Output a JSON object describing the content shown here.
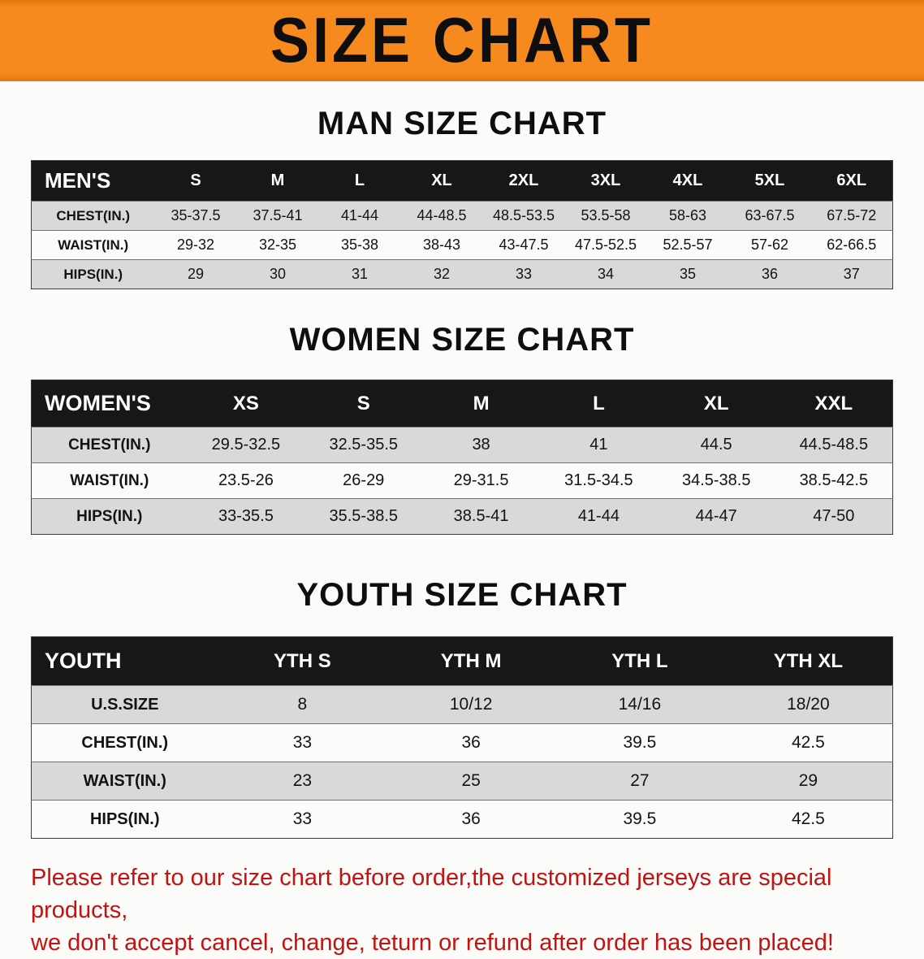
{
  "banner": {
    "title": "SIZE CHART"
  },
  "colors": {
    "banner_bg": "#f68a1e",
    "header_bg": "#171717",
    "stripe": "#d9d9d9",
    "disclaimer": "#c31310"
  },
  "sections": [
    {
      "id": "men",
      "heading": "MAN SIZE CHART",
      "table": {
        "header": [
          "MEN'S",
          "S",
          "M",
          "L",
          "XL",
          "2XL",
          "3XL",
          "4XL",
          "5XL",
          "6XL"
        ],
        "rows": [
          [
            "CHEST(IN.)",
            "35-37.5",
            "37.5-41",
            "41-44",
            "44-48.5",
            "48.5-53.5",
            "53.5-58",
            "58-63",
            "63-67.5",
            "67.5-72"
          ],
          [
            "WAIST(IN.)",
            "29-32",
            "32-35",
            "35-38",
            "38-43",
            "43-47.5",
            "47.5-52.5",
            "52.5-57",
            "57-62",
            "62-66.5"
          ],
          [
            "HIPS(IN.)",
            "29",
            "30",
            "31",
            "32",
            "33",
            "34",
            "35",
            "36",
            "37"
          ]
        ]
      }
    },
    {
      "id": "women",
      "heading": "WOMEN SIZE CHART",
      "table": {
        "header": [
          "WOMEN'S",
          "XS",
          "S",
          "M",
          "L",
          "XL",
          "XXL"
        ],
        "rows": [
          [
            "CHEST(IN.)",
            "29.5-32.5",
            "32.5-35.5",
            "38",
            "41",
            "44.5",
            "44.5-48.5"
          ],
          [
            "WAIST(IN.)",
            "23.5-26",
            "26-29",
            "29-31.5",
            "31.5-34.5",
            "34.5-38.5",
            "38.5-42.5"
          ],
          [
            "HIPS(IN.)",
            "33-35.5",
            "35.5-38.5",
            "38.5-41",
            "41-44",
            "44-47",
            "47-50"
          ]
        ]
      }
    },
    {
      "id": "youth",
      "heading": "YOUTH SIZE CHART",
      "table": {
        "header": [
          "YOUTH",
          "YTH S",
          "YTH M",
          "YTH L",
          "YTH XL"
        ],
        "rows": [
          [
            "U.S.SIZE",
            "8",
            "10/12",
            "14/16",
            "18/20"
          ],
          [
            "CHEST(IN.)",
            "33",
            "36",
            "39.5",
            "42.5"
          ],
          [
            "WAIST(IN.)",
            "23",
            "25",
            "27",
            "29"
          ],
          [
            "HIPS(IN.)",
            "33",
            "36",
            "39.5",
            "42.5"
          ]
        ]
      }
    }
  ],
  "disclaimer": {
    "line1": "Please refer to our size chart before order,the customized jerseys are special products,",
    "line2": "we don't accept cancel, change, teturn or refund after order has been placed!"
  }
}
